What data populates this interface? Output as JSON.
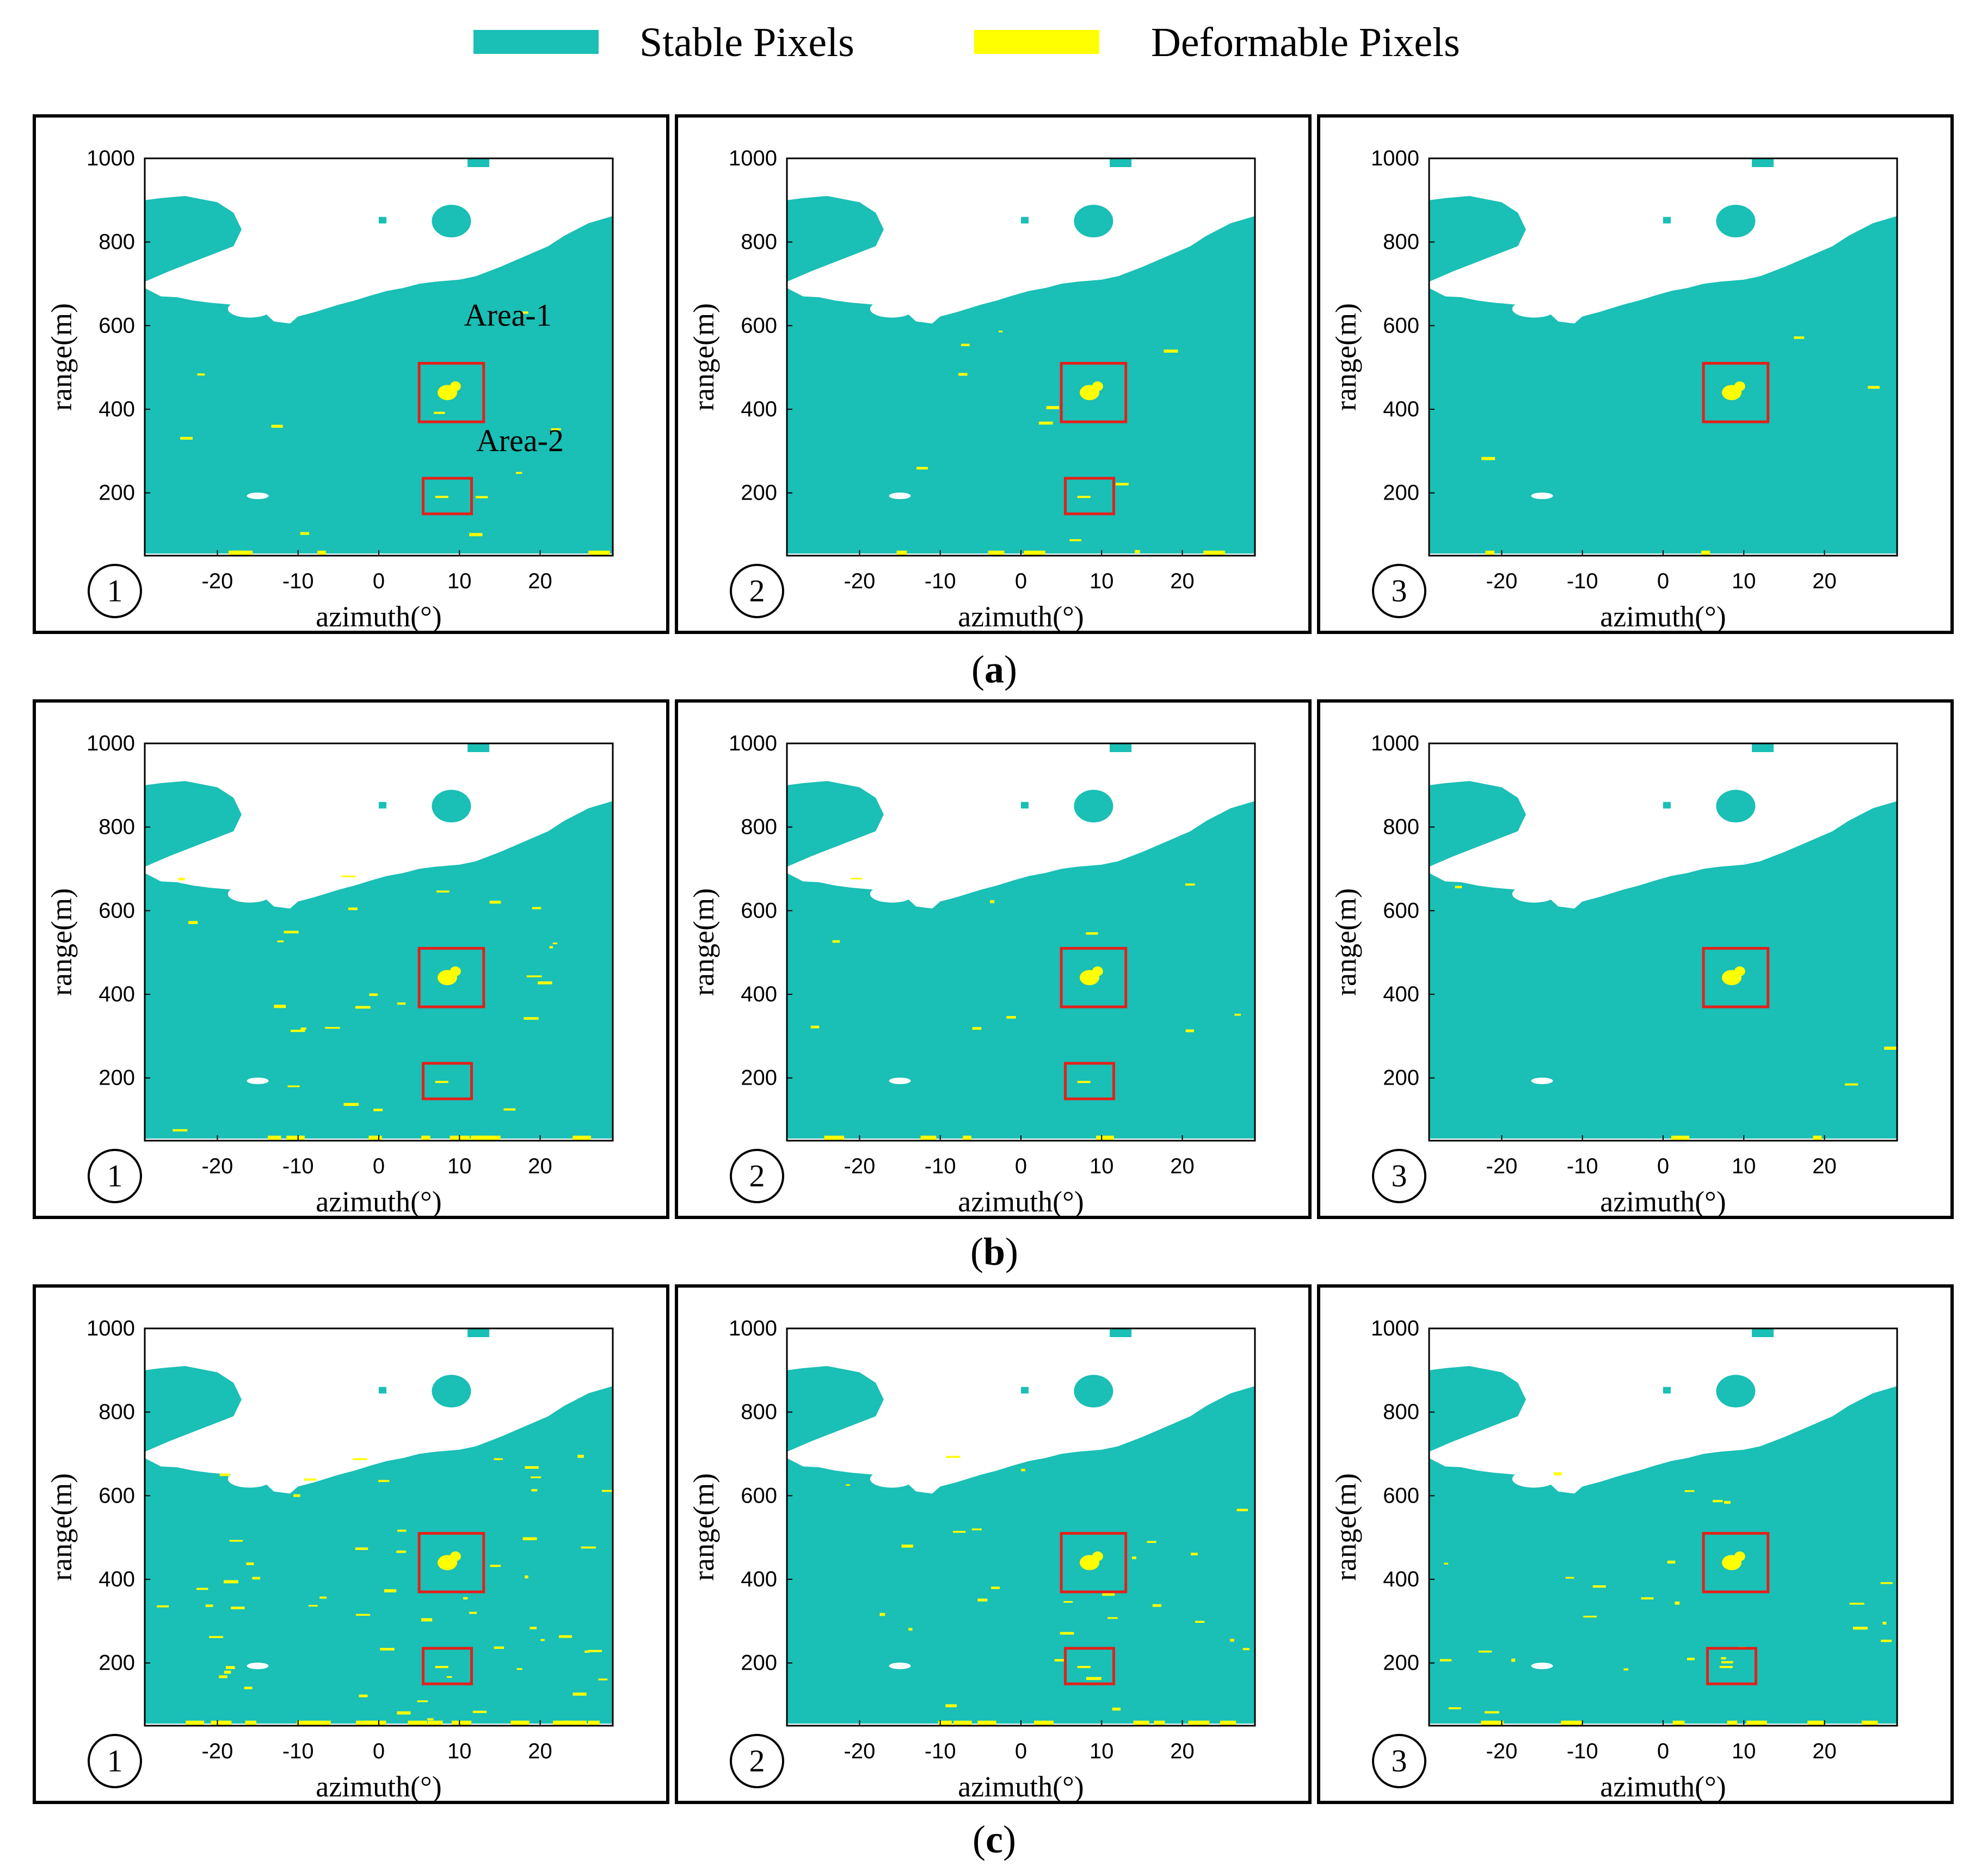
{
  "colors": {
    "stable": "#1abfb5",
    "deformable": "#ffff00",
    "empty": "#ffffff",
    "box": "#e3201b"
  },
  "legend": {
    "stable_label": "Stable Pixels",
    "deformable_label": "Deformable Pixels"
  },
  "rows": [
    {
      "label": "a"
    },
    {
      "label": "b"
    },
    {
      "label": "c"
    }
  ],
  "chart_data": [
    {
      "type": "heatmap",
      "row": "a",
      "index_label": "1",
      "xlabel": "azimuth(°)",
      "ylabel": "range(m)",
      "xlim": [
        -29,
        29
      ],
      "ylim": [
        50,
        1000
      ],
      "xticks": [
        "-20",
        "-10",
        "0",
        "10",
        "20"
      ],
      "yticks": [
        "1000",
        "800",
        "600",
        "400",
        "200"
      ],
      "annotations": [
        "Area-1",
        "Area-2"
      ],
      "areas": [
        {
          "name": "Area-1",
          "x": [
            5,
            13
          ],
          "y": [
            370,
            510
          ]
        },
        {
          "name": "Area-2",
          "x": [
            5.5,
            11.5
          ],
          "y": [
            150,
            235
          ]
        }
      ],
      "deformable_extent": "low"
    },
    {
      "type": "heatmap",
      "row": "a",
      "index_label": "2",
      "xlabel": "azimuth(°)",
      "ylabel": "range(m)",
      "xlim": [
        -29,
        29
      ],
      "ylim": [
        50,
        1000
      ],
      "xticks": [
        "-20",
        "-10",
        "0",
        "10",
        "20"
      ],
      "yticks": [
        "1000",
        "800",
        "600",
        "400",
        "200"
      ],
      "annotations": [],
      "areas": [
        {
          "name": "Area-1",
          "x": [
            5,
            13
          ],
          "y": [
            370,
            510
          ]
        },
        {
          "name": "Area-2",
          "x": [
            5.5,
            11.5
          ],
          "y": [
            150,
            235
          ]
        }
      ],
      "deformable_extent": "low"
    },
    {
      "type": "heatmap",
      "row": "a",
      "index_label": "3",
      "xlabel": "azimuth(°)",
      "ylabel": "range(m)",
      "xlim": [
        -29,
        29
      ],
      "ylim": [
        50,
        1000
      ],
      "xticks": [
        "-20",
        "-10",
        "0",
        "10",
        "20"
      ],
      "yticks": [
        "1000",
        "800",
        "600",
        "400",
        "200"
      ],
      "annotations": [],
      "areas": [
        {
          "name": "Area-1",
          "x": [
            5,
            13
          ],
          "y": [
            370,
            510
          ]
        }
      ],
      "deformable_extent": "minimal"
    },
    {
      "type": "heatmap",
      "row": "b",
      "index_label": "1",
      "xlabel": "azimuth(°)",
      "ylabel": "range(m)",
      "xlim": [
        -29,
        29
      ],
      "ylim": [
        50,
        1000
      ],
      "xticks": [
        "-20",
        "-10",
        "0",
        "10",
        "20"
      ],
      "yticks": [
        "1000",
        "800",
        "600",
        "400",
        "200"
      ],
      "annotations": [],
      "areas": [
        {
          "name": "Area-1",
          "x": [
            5,
            13
          ],
          "y": [
            370,
            510
          ]
        },
        {
          "name": "Area-2",
          "x": [
            5.5,
            11.5
          ],
          "y": [
            150,
            235
          ]
        }
      ],
      "deformable_extent": "medium"
    },
    {
      "type": "heatmap",
      "row": "b",
      "index_label": "2",
      "xlabel": "azimuth(°)",
      "ylabel": "range(m)",
      "xlim": [
        -29,
        29
      ],
      "ylim": [
        50,
        1000
      ],
      "xticks": [
        "-20",
        "-10",
        "0",
        "10",
        "20"
      ],
      "yticks": [
        "1000",
        "800",
        "600",
        "400",
        "200"
      ],
      "annotations": [],
      "areas": [
        {
          "name": "Area-1",
          "x": [
            5,
            13
          ],
          "y": [
            370,
            510
          ]
        },
        {
          "name": "Area-2",
          "x": [
            5.5,
            11.5
          ],
          "y": [
            150,
            235
          ]
        }
      ],
      "deformable_extent": "low"
    },
    {
      "type": "heatmap",
      "row": "b",
      "index_label": "3",
      "xlabel": "azimuth(°)",
      "ylabel": "range(m)",
      "xlim": [
        -29,
        29
      ],
      "ylim": [
        50,
        1000
      ],
      "xticks": [
        "-20",
        "-10",
        "0",
        "10",
        "20"
      ],
      "yticks": [
        "1000",
        "800",
        "600",
        "400",
        "200"
      ],
      "annotations": [],
      "areas": [
        {
          "name": "Area-1",
          "x": [
            5,
            13
          ],
          "y": [
            370,
            510
          ]
        }
      ],
      "deformable_extent": "minimal"
    },
    {
      "type": "heatmap",
      "row": "c",
      "index_label": "1",
      "xlabel": "azimuth(°)",
      "ylabel": "range(m)",
      "xlim": [
        -29,
        29
      ],
      "ylim": [
        50,
        1000
      ],
      "xticks": [
        "-20",
        "-10",
        "0",
        "10",
        "20"
      ],
      "yticks": [
        "1000",
        "800",
        "600",
        "400",
        "200"
      ],
      "annotations": [],
      "areas": [
        {
          "name": "Area-1",
          "x": [
            5,
            13
          ],
          "y": [
            370,
            510
          ]
        },
        {
          "name": "Area-2",
          "x": [
            5.5,
            11.5
          ],
          "y": [
            150,
            235
          ]
        }
      ],
      "deformable_extent": "high"
    },
    {
      "type": "heatmap",
      "row": "c",
      "index_label": "2",
      "xlabel": "azimuth(°)",
      "ylabel": "range(m)",
      "xlim": [
        -29,
        29
      ],
      "ylim": [
        50,
        1000
      ],
      "xticks": [
        "-20",
        "-10",
        "0",
        "10",
        "20"
      ],
      "yticks": [
        "1000",
        "800",
        "600",
        "400",
        "200"
      ],
      "annotations": [],
      "areas": [
        {
          "name": "Area-1",
          "x": [
            5,
            13
          ],
          "y": [
            370,
            510
          ]
        },
        {
          "name": "Area-2",
          "x": [
            5.5,
            11.5
          ],
          "y": [
            150,
            235
          ]
        }
      ],
      "deformable_extent": "medium"
    },
    {
      "type": "heatmap",
      "row": "c",
      "index_label": "3",
      "xlabel": "azimuth(°)",
      "ylabel": "range(m)",
      "xlim": [
        -29,
        29
      ],
      "ylim": [
        50,
        1000
      ],
      "xticks": [
        "-20",
        "-10",
        "0",
        "10",
        "20"
      ],
      "yticks": [
        "1000",
        "800",
        "600",
        "400",
        "200"
      ],
      "annotations": [],
      "areas": [
        {
          "name": "Area-1",
          "x": [
            5,
            13
          ],
          "y": [
            370,
            510
          ]
        },
        {
          "name": "Area-2",
          "x": [
            5.5,
            11.5
          ],
          "y": [
            150,
            235
          ]
        }
      ],
      "deformable_extent": "medium"
    }
  ]
}
